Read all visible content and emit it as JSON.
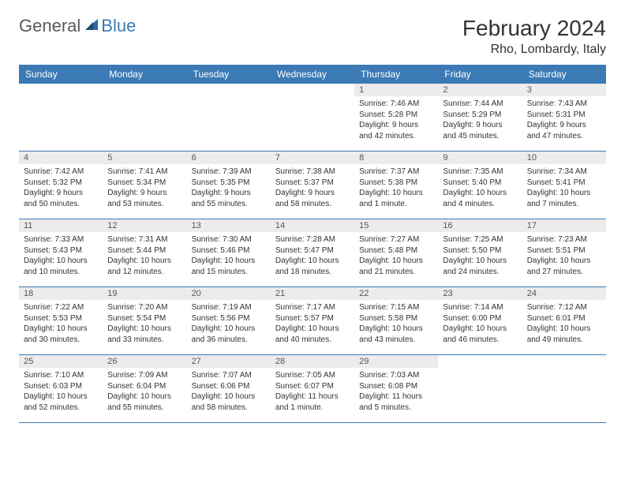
{
  "logo": {
    "part1": "General",
    "part2": "Blue"
  },
  "title": "February 2024",
  "location": "Rho, Lombardy, Italy",
  "colors": {
    "header_bg": "#3b7ab5",
    "header_text": "#ffffff",
    "daynum_bg": "#ececec",
    "cell_border": "#3b7ab5",
    "text": "#333333",
    "logo_gray": "#5a5a5a",
    "logo_blue": "#3b7ab5"
  },
  "day_names": [
    "Sunday",
    "Monday",
    "Tuesday",
    "Wednesday",
    "Thursday",
    "Friday",
    "Saturday"
  ],
  "weeks": [
    [
      {
        "empty": true
      },
      {
        "empty": true
      },
      {
        "empty": true
      },
      {
        "empty": true
      },
      {
        "n": "1",
        "sunrise": "Sunrise: 7:46 AM",
        "sunset": "Sunset: 5:28 PM",
        "daylight": "Daylight: 9 hours and 42 minutes."
      },
      {
        "n": "2",
        "sunrise": "Sunrise: 7:44 AM",
        "sunset": "Sunset: 5:29 PM",
        "daylight": "Daylight: 9 hours and 45 minutes."
      },
      {
        "n": "3",
        "sunrise": "Sunrise: 7:43 AM",
        "sunset": "Sunset: 5:31 PM",
        "daylight": "Daylight: 9 hours and 47 minutes."
      }
    ],
    [
      {
        "n": "4",
        "sunrise": "Sunrise: 7:42 AM",
        "sunset": "Sunset: 5:32 PM",
        "daylight": "Daylight: 9 hours and 50 minutes."
      },
      {
        "n": "5",
        "sunrise": "Sunrise: 7:41 AM",
        "sunset": "Sunset: 5:34 PM",
        "daylight": "Daylight: 9 hours and 53 minutes."
      },
      {
        "n": "6",
        "sunrise": "Sunrise: 7:39 AM",
        "sunset": "Sunset: 5:35 PM",
        "daylight": "Daylight: 9 hours and 55 minutes."
      },
      {
        "n": "7",
        "sunrise": "Sunrise: 7:38 AM",
        "sunset": "Sunset: 5:37 PM",
        "daylight": "Daylight: 9 hours and 58 minutes."
      },
      {
        "n": "8",
        "sunrise": "Sunrise: 7:37 AM",
        "sunset": "Sunset: 5:38 PM",
        "daylight": "Daylight: 10 hours and 1 minute."
      },
      {
        "n": "9",
        "sunrise": "Sunrise: 7:35 AM",
        "sunset": "Sunset: 5:40 PM",
        "daylight": "Daylight: 10 hours and 4 minutes."
      },
      {
        "n": "10",
        "sunrise": "Sunrise: 7:34 AM",
        "sunset": "Sunset: 5:41 PM",
        "daylight": "Daylight: 10 hours and 7 minutes."
      }
    ],
    [
      {
        "n": "11",
        "sunrise": "Sunrise: 7:33 AM",
        "sunset": "Sunset: 5:43 PM",
        "daylight": "Daylight: 10 hours and 10 minutes."
      },
      {
        "n": "12",
        "sunrise": "Sunrise: 7:31 AM",
        "sunset": "Sunset: 5:44 PM",
        "daylight": "Daylight: 10 hours and 12 minutes."
      },
      {
        "n": "13",
        "sunrise": "Sunrise: 7:30 AM",
        "sunset": "Sunset: 5:46 PM",
        "daylight": "Daylight: 10 hours and 15 minutes."
      },
      {
        "n": "14",
        "sunrise": "Sunrise: 7:28 AM",
        "sunset": "Sunset: 5:47 PM",
        "daylight": "Daylight: 10 hours and 18 minutes."
      },
      {
        "n": "15",
        "sunrise": "Sunrise: 7:27 AM",
        "sunset": "Sunset: 5:48 PM",
        "daylight": "Daylight: 10 hours and 21 minutes."
      },
      {
        "n": "16",
        "sunrise": "Sunrise: 7:25 AM",
        "sunset": "Sunset: 5:50 PM",
        "daylight": "Daylight: 10 hours and 24 minutes."
      },
      {
        "n": "17",
        "sunrise": "Sunrise: 7:23 AM",
        "sunset": "Sunset: 5:51 PM",
        "daylight": "Daylight: 10 hours and 27 minutes."
      }
    ],
    [
      {
        "n": "18",
        "sunrise": "Sunrise: 7:22 AM",
        "sunset": "Sunset: 5:53 PM",
        "daylight": "Daylight: 10 hours and 30 minutes."
      },
      {
        "n": "19",
        "sunrise": "Sunrise: 7:20 AM",
        "sunset": "Sunset: 5:54 PM",
        "daylight": "Daylight: 10 hours and 33 minutes."
      },
      {
        "n": "20",
        "sunrise": "Sunrise: 7:19 AM",
        "sunset": "Sunset: 5:56 PM",
        "daylight": "Daylight: 10 hours and 36 minutes."
      },
      {
        "n": "21",
        "sunrise": "Sunrise: 7:17 AM",
        "sunset": "Sunset: 5:57 PM",
        "daylight": "Daylight: 10 hours and 40 minutes."
      },
      {
        "n": "22",
        "sunrise": "Sunrise: 7:15 AM",
        "sunset": "Sunset: 5:58 PM",
        "daylight": "Daylight: 10 hours and 43 minutes."
      },
      {
        "n": "23",
        "sunrise": "Sunrise: 7:14 AM",
        "sunset": "Sunset: 6:00 PM",
        "daylight": "Daylight: 10 hours and 46 minutes."
      },
      {
        "n": "24",
        "sunrise": "Sunrise: 7:12 AM",
        "sunset": "Sunset: 6:01 PM",
        "daylight": "Daylight: 10 hours and 49 minutes."
      }
    ],
    [
      {
        "n": "25",
        "sunrise": "Sunrise: 7:10 AM",
        "sunset": "Sunset: 6:03 PM",
        "daylight": "Daylight: 10 hours and 52 minutes."
      },
      {
        "n": "26",
        "sunrise": "Sunrise: 7:09 AM",
        "sunset": "Sunset: 6:04 PM",
        "daylight": "Daylight: 10 hours and 55 minutes."
      },
      {
        "n": "27",
        "sunrise": "Sunrise: 7:07 AM",
        "sunset": "Sunset: 6:06 PM",
        "daylight": "Daylight: 10 hours and 58 minutes."
      },
      {
        "n": "28",
        "sunrise": "Sunrise: 7:05 AM",
        "sunset": "Sunset: 6:07 PM",
        "daylight": "Daylight: 11 hours and 1 minute."
      },
      {
        "n": "29",
        "sunrise": "Sunrise: 7:03 AM",
        "sunset": "Sunset: 6:08 PM",
        "daylight": "Daylight: 11 hours and 5 minutes."
      },
      {
        "empty": true
      },
      {
        "empty": true
      }
    ]
  ]
}
